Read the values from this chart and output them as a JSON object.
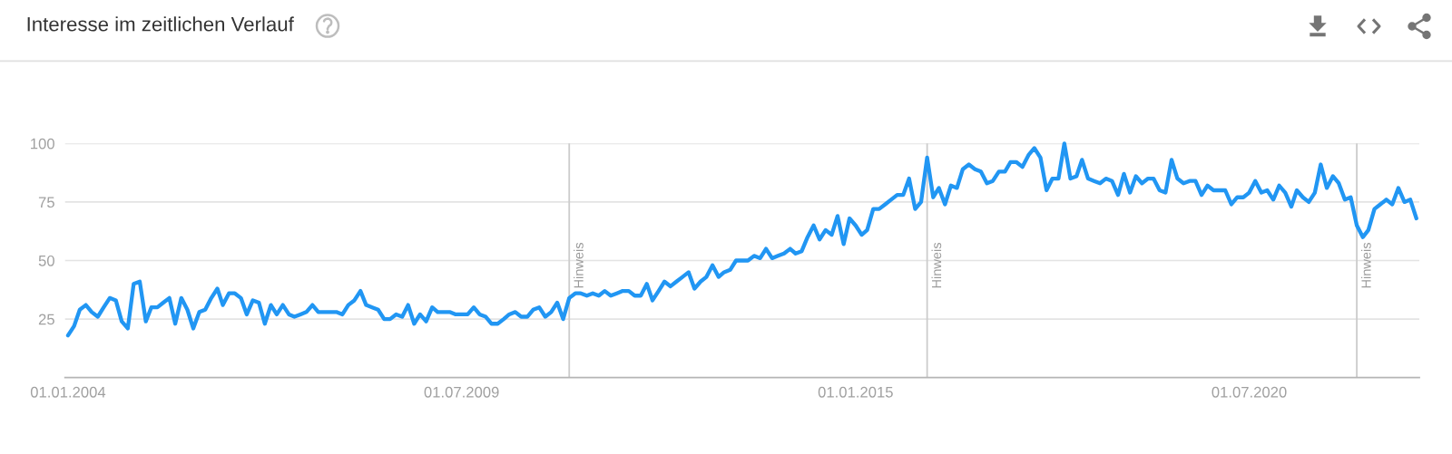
{
  "chart_data": {
    "type": "line",
    "title": "Interesse im zeitlichen Verlauf",
    "x": [
      "2004-01",
      "2004-02",
      "2004-03",
      "2004-04",
      "2004-05",
      "2004-06",
      "2004-07",
      "2004-08",
      "2004-09",
      "2004-10",
      "2004-11",
      "2004-12",
      "2005-01",
      "2005-02",
      "2005-03",
      "2005-04",
      "2005-05",
      "2005-06",
      "2005-07",
      "2005-08",
      "2005-09",
      "2005-10",
      "2005-11",
      "2005-12",
      "2006-01",
      "2006-02",
      "2006-03",
      "2006-04",
      "2006-05",
      "2006-06",
      "2006-07",
      "2006-08",
      "2006-09",
      "2006-10",
      "2006-11",
      "2006-12",
      "2007-01",
      "2007-02",
      "2007-03",
      "2007-04",
      "2007-05",
      "2007-06",
      "2007-07",
      "2007-08",
      "2007-09",
      "2007-10",
      "2007-11",
      "2007-12",
      "2008-01",
      "2008-02",
      "2008-03",
      "2008-04",
      "2008-05",
      "2008-06",
      "2008-07",
      "2008-08",
      "2008-09",
      "2008-10",
      "2008-11",
      "2008-12",
      "2009-01",
      "2009-02",
      "2009-03",
      "2009-04",
      "2009-05",
      "2009-06",
      "2009-07",
      "2009-08",
      "2009-09",
      "2009-10",
      "2009-11",
      "2009-12",
      "2010-01",
      "2010-02",
      "2010-03",
      "2010-04",
      "2010-05",
      "2010-06",
      "2010-07",
      "2010-08",
      "2010-09",
      "2010-10",
      "2010-11",
      "2010-12",
      "2011-01",
      "2011-02",
      "2011-03",
      "2011-04",
      "2011-05",
      "2011-06",
      "2011-07",
      "2011-08",
      "2011-09",
      "2011-10",
      "2011-11",
      "2011-12",
      "2012-01",
      "2012-02",
      "2012-03",
      "2012-04",
      "2012-05",
      "2012-06",
      "2012-07",
      "2012-08",
      "2012-09",
      "2012-10",
      "2012-11",
      "2012-12",
      "2013-01",
      "2013-02",
      "2013-03",
      "2013-04",
      "2013-05",
      "2013-06",
      "2013-07",
      "2013-08",
      "2013-09",
      "2013-10",
      "2013-11",
      "2013-12",
      "2014-01",
      "2014-02",
      "2014-03",
      "2014-04",
      "2014-05",
      "2014-06",
      "2014-07",
      "2014-08",
      "2014-09",
      "2014-10",
      "2014-11",
      "2014-12",
      "2015-01",
      "2015-02",
      "2015-03",
      "2015-04",
      "2015-05",
      "2015-06",
      "2015-07",
      "2015-08",
      "2015-09",
      "2015-10",
      "2015-11",
      "2015-12",
      "2016-01",
      "2016-02",
      "2016-03",
      "2016-04",
      "2016-05",
      "2016-06",
      "2016-07",
      "2016-08",
      "2016-09",
      "2016-10",
      "2016-11",
      "2016-12",
      "2017-01",
      "2017-02",
      "2017-03",
      "2017-04",
      "2017-05",
      "2017-06",
      "2017-07",
      "2017-08",
      "2017-09",
      "2017-10",
      "2017-11",
      "2017-12",
      "2018-01",
      "2018-02",
      "2018-03",
      "2018-04",
      "2018-05",
      "2018-06",
      "2018-07",
      "2018-08",
      "2018-09",
      "2018-10",
      "2018-11",
      "2018-12",
      "2019-01",
      "2019-02",
      "2019-03",
      "2019-04",
      "2019-05",
      "2019-06",
      "2019-07",
      "2019-08",
      "2019-09",
      "2019-10",
      "2019-11",
      "2019-12",
      "2020-01",
      "2020-02",
      "2020-03",
      "2020-04",
      "2020-05",
      "2020-06",
      "2020-07",
      "2020-08",
      "2020-09",
      "2020-10",
      "2020-11",
      "2020-12",
      "2021-01",
      "2021-02",
      "2021-03",
      "2021-04",
      "2021-05",
      "2021-06",
      "2021-07",
      "2021-08",
      "2021-09",
      "2021-10",
      "2021-11",
      "2021-12",
      "2022-01",
      "2022-02",
      "2022-03",
      "2022-04",
      "2022-05",
      "2022-06",
      "2022-07",
      "2022-08",
      "2022-09",
      "2022-10",
      "2022-11"
    ],
    "series": [
      {
        "color": "#2196f3",
        "values": [
          18,
          22,
          29,
          31,
          28,
          26,
          30,
          34,
          33,
          24,
          21,
          40,
          41,
          24,
          30,
          30,
          32,
          34,
          23,
          34,
          29,
          21,
          28,
          29,
          34,
          38,
          31,
          36,
          36,
          34,
          27,
          33,
          32,
          23,
          31,
          27,
          31,
          27,
          26,
          27,
          28,
          31,
          28,
          28,
          28,
          28,
          27,
          31,
          33,
          37,
          31,
          30,
          29,
          25,
          25,
          27,
          26,
          31,
          23,
          27,
          24,
          30,
          28,
          28,
          28,
          27,
          27,
          27,
          30,
          27,
          26,
          23,
          23,
          25,
          27,
          28,
          26,
          26,
          29,
          30,
          26,
          28,
          32,
          25,
          34,
          36,
          36,
          35,
          36,
          35,
          37,
          35,
          36,
          37,
          37,
          35,
          35,
          40,
          33,
          37,
          41,
          39,
          41,
          43,
          45,
          38,
          41,
          43,
          48,
          43,
          45,
          46,
          50,
          50,
          50,
          52,
          51,
          55,
          51,
          52,
          53,
          55,
          53,
          54,
          60,
          65,
          59,
          63,
          61,
          69,
          57,
          68,
          65,
          61,
          63,
          72,
          72,
          74,
          76,
          78,
          78,
          85,
          72,
          75,
          94,
          77,
          81,
          74,
          82,
          81,
          89,
          91,
          89,
          88,
          83,
          84,
          88,
          88,
          92,
          92,
          90,
          95,
          98,
          94,
          80,
          85,
          85,
          100,
          85,
          86,
          93,
          85,
          84,
          83,
          85,
          84,
          78,
          87,
          79,
          86,
          83,
          85,
          85,
          80,
          79,
          93,
          85,
          83,
          84,
          84,
          78,
          82,
          80,
          80,
          80,
          74,
          77,
          77,
          79,
          84,
          79,
          80,
          76,
          82,
          79,
          73,
          80,
          77,
          75,
          79,
          91,
          81,
          86,
          83,
          76,
          77,
          65,
          60,
          63,
          72,
          74,
          76,
          74,
          81,
          75,
          76,
          68
        ]
      }
    ],
    "xlim": [
      "2003-12-17",
      "2022-11-16"
    ],
    "xticks": [
      {
        "value": "2004-01-01",
        "label": "01.01.2004"
      },
      {
        "value": "2009-07-01",
        "label": "01.07.2009"
      },
      {
        "value": "2015-01-01",
        "label": "01.01.2015"
      },
      {
        "value": "2020-07-01",
        "label": "01.07.2020"
      }
    ],
    "ylim": [
      0,
      100
    ],
    "yticks": [
      25,
      50,
      75,
      100
    ],
    "grid": "y",
    "line_style": "solid",
    "ref_lines": [
      {
        "axis": "x",
        "value": "2011-01",
        "label": "Hinweis",
        "color": "#cccccc"
      },
      {
        "axis": "x",
        "value": "2016-01",
        "label": "Hinweis",
        "color": "#cccccc"
      },
      {
        "axis": "x",
        "value": "2022-01",
        "label": "Hinweis",
        "color": "#cccccc"
      }
    ]
  }
}
